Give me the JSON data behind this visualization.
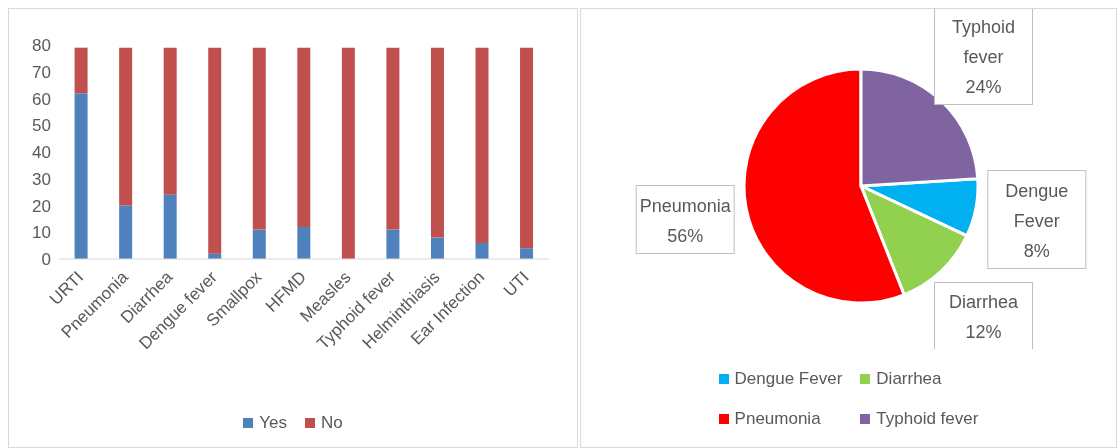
{
  "chart_data": [
    {
      "type": "bar",
      "stacked": true,
      "categories": [
        "URTI",
        "Pneumonia",
        "Diarrhea",
        "Dengue fever",
        "Smallpox",
        "HFMD",
        "Measles",
        "Typhoid fever",
        "Helminthiasis",
        "Ear Infection",
        "UTI"
      ],
      "series": [
        {
          "name": "Yes",
          "color": "#4f81bd",
          "values": [
            62,
            20,
            24,
            2,
            11,
            12,
            0,
            11,
            8,
            6,
            4
          ]
        },
        {
          "name": "No",
          "color": "#c0504d",
          "values": [
            17,
            59,
            55,
            77,
            68,
            67,
            79,
            68,
            71,
            73,
            75
          ]
        }
      ],
      "ylim": [
        0,
        80
      ],
      "yticks": [
        0,
        10,
        20,
        30,
        40,
        50,
        60,
        70,
        80
      ],
      "grid": false,
      "legend": "bottom"
    },
    {
      "type": "pie",
      "categories": [
        "Dengue Fever",
        "Diarrhea",
        "Pneumonia",
        "Typhoid fever"
      ],
      "values": [
        8,
        12,
        56,
        24
      ],
      "colors": [
        "#00b0f0",
        "#92d050",
        "#ff0000",
        "#8064a2"
      ],
      "value_labels": [
        "8%",
        "12%",
        "56%",
        "24%"
      ],
      "legend": "bottom"
    }
  ]
}
